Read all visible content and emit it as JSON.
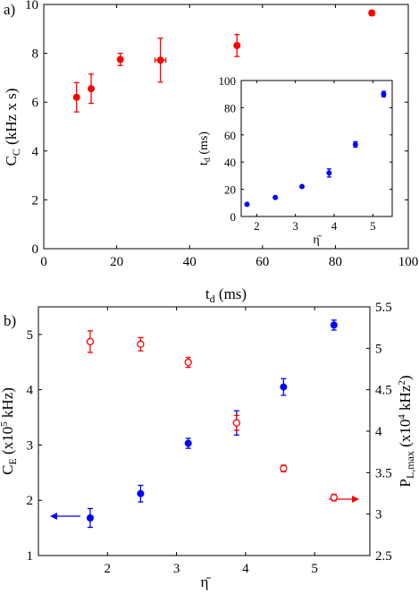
{
  "chart_data": [
    {
      "panel_label": "a)",
      "type": "scatter",
      "xlabel_main": "t",
      "xlabel_sub": "d",
      "xlabel_unit": " (ms)",
      "ylabel_main": "C",
      "ylabel_sub": "C",
      "ylabel_unit": " (kHz x s)",
      "xlim": [
        0,
        100
      ],
      "ylim": [
        0,
        10
      ],
      "xticks": [
        0,
        20,
        40,
        60,
        80,
        100
      ],
      "yticks": [
        0,
        2,
        4,
        6,
        8,
        10
      ],
      "color": "#ff0000",
      "marker": "filled-circle",
      "points": [
        {
          "x": 9,
          "y": 6.2,
          "yerr": 0.6,
          "xerr": 0
        },
        {
          "x": 13,
          "y": 6.55,
          "yerr": 0.6,
          "xerr": 0
        },
        {
          "x": 21,
          "y": 7.75,
          "yerr": 0.25,
          "xerr": 0
        },
        {
          "x": 32,
          "y": 7.72,
          "yerr": 0.9,
          "xerr": 1.5
        },
        {
          "x": 53,
          "y": 8.32,
          "yerr": 0.45,
          "xerr": 0
        },
        {
          "x": 90,
          "y": 9.65,
          "yerr": 0.1,
          "xerr": 0
        }
      ]
    },
    {
      "panel_label": "inset",
      "type": "scatter",
      "xlabel": "η̄",
      "ylabel_main": "t",
      "ylabel_sub": "d",
      "ylabel_unit": " (ms)",
      "xlim": [
        1.6,
        5.5
      ],
      "ylim": [
        0,
        100
      ],
      "xticks": [
        2,
        3,
        4,
        5
      ],
      "yticks": [
        0,
        20,
        40,
        60,
        80,
        100
      ],
      "color": "#0000ff",
      "marker": "filled-circle",
      "points": [
        {
          "x": 1.75,
          "y": 9,
          "yerr": 0
        },
        {
          "x": 2.48,
          "y": 14,
          "yerr": 0
        },
        {
          "x": 3.17,
          "y": 22,
          "yerr": 0
        },
        {
          "x": 3.87,
          "y": 32,
          "yerr": 3
        },
        {
          "x": 4.55,
          "y": 53,
          "yerr": 2
        },
        {
          "x": 5.28,
          "y": 90,
          "yerr": 2
        }
      ]
    },
    {
      "panel_label": "b)",
      "type": "scatter",
      "xlabel": "η̄",
      "ylabel_left_main": "C",
      "ylabel_left_sub": "E",
      "ylabel_left_unit": " (x10",
      "ylabel_left_exp": "5",
      "ylabel_left_tail": " kHz)",
      "ylabel_right_main": "P",
      "ylabel_right_sub": "L,max",
      "ylabel_right_unit": " (x10",
      "ylabel_right_exp": "4",
      "ylabel_right_tail": " kHz",
      "ylabel_right_exp2": "2",
      "ylabel_right_close": ")",
      "xlim": [
        1.0,
        5.8
      ],
      "ylim_left": [
        1,
        5.5
      ],
      "ylim_right": [
        2.5,
        5.5
      ],
      "xticks": [
        2,
        3,
        4,
        5
      ],
      "yticks_left": [
        1,
        2,
        3,
        4,
        5
      ],
      "yticks_right": [
        2.5,
        3,
        3.5,
        4,
        4.5,
        5,
        5.5
      ],
      "series": [
        {
          "name": "C_E",
          "axis": "left",
          "color": "#0000ff",
          "marker": "filled-circle",
          "points": [
            {
              "x": 1.75,
              "y": 1.68,
              "yerr": 0.17
            },
            {
              "x": 2.48,
              "y": 2.12,
              "yerr": 0.15
            },
            {
              "x": 3.17,
              "y": 3.03,
              "yerr": 0.09
            },
            {
              "x": 3.87,
              "y": 3.4,
              "yerr": 0.22
            },
            {
              "x": 4.55,
              "y": 4.05,
              "yerr": 0.15
            },
            {
              "x": 5.28,
              "y": 5.17,
              "yerr": 0.09
            }
          ]
        },
        {
          "name": "P_L,max",
          "axis": "right",
          "color": "#ff0000",
          "marker": "open-circle",
          "points": [
            {
              "x": 1.75,
              "y": 5.08,
              "yerr": 0.13
            },
            {
              "x": 2.48,
              "y": 5.05,
              "yerr": 0.08
            },
            {
              "x": 3.17,
              "y": 4.83,
              "yerr": 0.06
            },
            {
              "x": 3.87,
              "y": 4.1,
              "yerr": 0.09
            },
            {
              "x": 4.55,
              "y": 3.55,
              "yerr": 0.04
            },
            {
              "x": 5.28,
              "y": 3.2,
              "yerr": 0.04
            }
          ]
        }
      ]
    }
  ]
}
